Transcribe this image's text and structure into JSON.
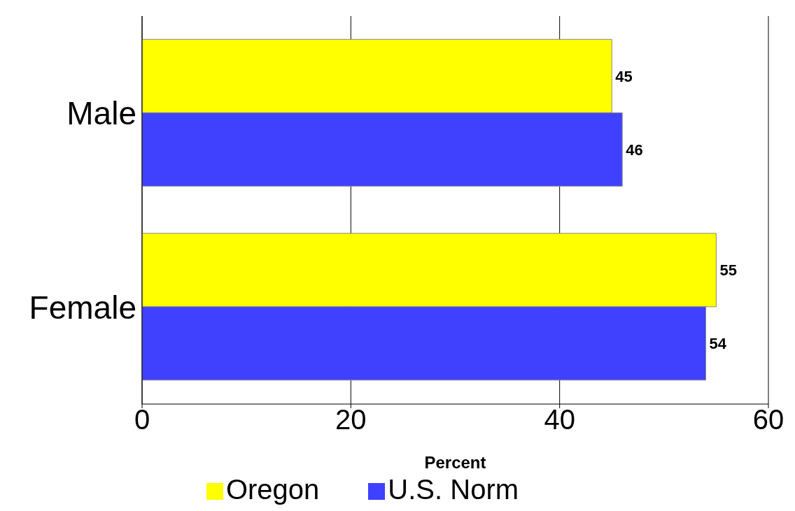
{
  "chart_data": {
    "type": "bar",
    "orientation": "horizontal",
    "xlabel": "Percent",
    "categories": [
      "Male",
      "Female"
    ],
    "series": [
      {
        "name": "Oregon",
        "color": "#ffff00",
        "values": [
          45,
          55
        ]
      },
      {
        "name": "U.S. Norm",
        "color": "#4040ff",
        "values": [
          46,
          54
        ]
      }
    ],
    "xlim": [
      0,
      60
    ],
    "xticks": [
      0,
      20,
      40,
      60
    ],
    "grid": "x",
    "legend": "bottom",
    "data_labels": true
  }
}
